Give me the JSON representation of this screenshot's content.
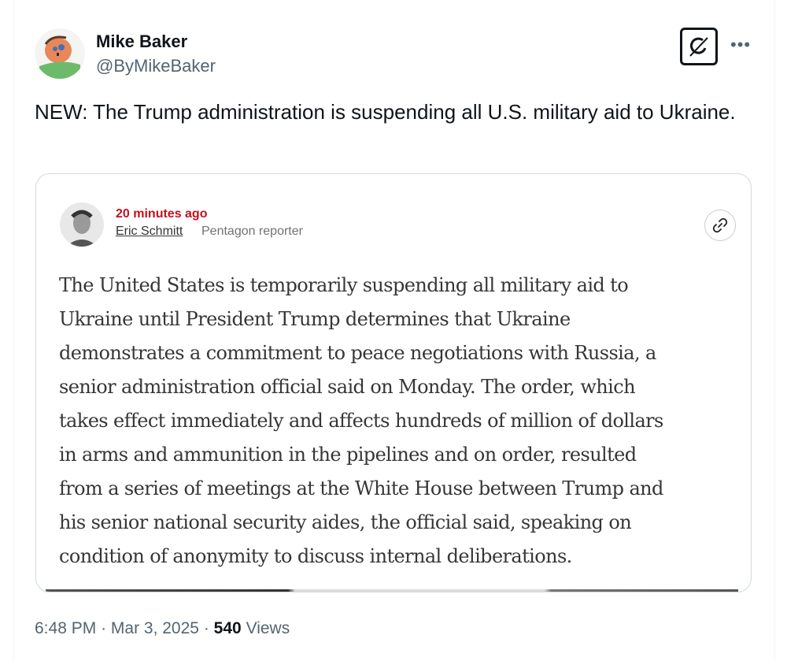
{
  "author": {
    "name": "Mike Baker",
    "handle": "@ByMikeBaker"
  },
  "tweet_text": "NEW: The Trump administration is suspending all U.S. military aid to Ukraine.",
  "quote_card": {
    "time_ago": "20 minutes ago",
    "reporter_name": "Eric Schmitt",
    "reporter_role": "Pentagon reporter",
    "lines": [
      "The United States is temporarily suspending all military aid to",
      "Ukraine until President Trump determines that Ukraine",
      "demonstrates a commitment to peace negotiations with Russia, a",
      "senior administration official said on Monday. The order, which",
      "takes effect immediately and affects hundreds of million of dollars",
      "in arms and ammunition in the pipelines and on order, resulted",
      "from a series of meetings at the White House between Trump and",
      "his senior national security aides, the official said, speaking on",
      "condition of anonymity to discuss internal deliberations."
    ]
  },
  "meta": {
    "time": "6:48 PM",
    "separator": "·",
    "date": "Mar 3, 2025",
    "views_count": "540",
    "views_label": "Views"
  },
  "icons": {
    "grok": "grok-icon",
    "more": "more-icon",
    "link": "link-icon"
  },
  "colors": {
    "accent_red": "#c4101d",
    "text": "#0f1419",
    "secondary": "#536471"
  }
}
